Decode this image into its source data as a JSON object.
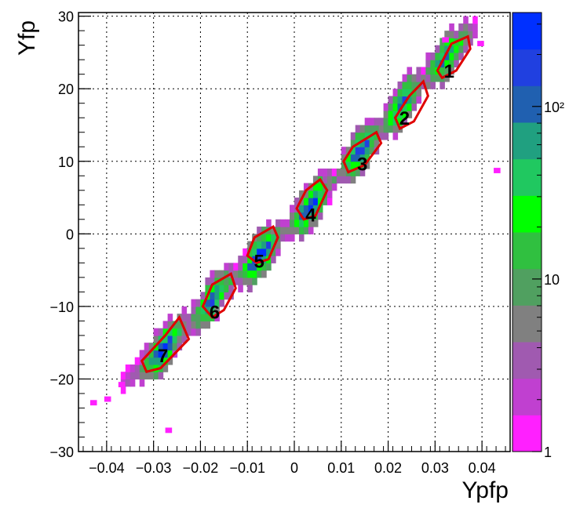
{
  "chart_data": {
    "type": "heatmap",
    "xlabel": "Ypfp",
    "ylabel": "Yfp",
    "xlim": [
      -0.046,
      0.046
    ],
    "ylim": [
      -30,
      30.5
    ],
    "grid": true,
    "x_ticks": [
      {
        "value": -0.04,
        "label": "−0.04"
      },
      {
        "value": -0.03,
        "label": "−0.03"
      },
      {
        "value": -0.02,
        "label": "−0.02"
      },
      {
        "value": -0.01,
        "label": "−0.01"
      },
      {
        "value": 0,
        "label": "0"
      },
      {
        "value": 0.01,
        "label": "0.01"
      },
      {
        "value": 0.02,
        "label": "0.02"
      },
      {
        "value": 0.03,
        "label": "0.03"
      },
      {
        "value": 0.04,
        "label": "0.04"
      }
    ],
    "y_ticks": [
      {
        "value": -30,
        "label": "−30"
      },
      {
        "value": -20,
        "label": "−20"
      },
      {
        "value": -10,
        "label": "−10"
      },
      {
        "value": 0,
        "label": "0"
      },
      {
        "value": 10,
        "label": "10"
      },
      {
        "value": 20,
        "label": "20"
      },
      {
        "value": 30,
        "label": "30"
      }
    ],
    "colorbar": {
      "scale": "log",
      "range": [
        1,
        350
      ],
      "ticks": [
        {
          "value": 1,
          "label": "1"
        },
        {
          "value": 10,
          "label": "10"
        },
        {
          "value": 100,
          "label": "10²"
        }
      ],
      "palette": [
        "#ff20ff",
        "#c040d0",
        "#a05ab0",
        "#808080",
        "#50a060",
        "#30c040",
        "#00ff00",
        "#20c860",
        "#20a080",
        "#2060b0",
        "#2040e0",
        "#0030ff"
      ]
    },
    "ridge": [
      [
        -0.043,
        -23.5
      ],
      [
        -0.036,
        -20.5
      ],
      [
        -0.03,
        -17.5
      ],
      [
        -0.025,
        -14
      ],
      [
        -0.02,
        -11
      ],
      [
        -0.016,
        -8
      ],
      [
        -0.012,
        -6
      ],
      [
        -0.008,
        -3.5
      ],
      [
        -0.004,
        -1
      ],
      [
        0.0,
        1.5
      ],
      [
        0.004,
        4
      ],
      [
        0.008,
        7
      ],
      [
        0.012,
        10
      ],
      [
        0.016,
        12.5
      ],
      [
        0.02,
        15.5
      ],
      [
        0.024,
        18.5
      ],
      [
        0.028,
        21.5
      ],
      [
        0.032,
        24
      ],
      [
        0.036,
        26.5
      ],
      [
        0.0385,
        28.5
      ]
    ],
    "outliers": [
      {
        "x": 0.0425,
        "y": 8.5,
        "count": 1
      },
      {
        "x": -0.0435,
        "y": -23.5,
        "count": 1
      },
      {
        "x": -0.0405,
        "y": -23.0,
        "count": 1
      },
      {
        "x": -0.0375,
        "y": -21.0,
        "count": 1
      },
      {
        "x": -0.0275,
        "y": -27.3,
        "count": 1
      },
      {
        "x": 0.0315,
        "y": 26.5,
        "count": 1
      },
      {
        "x": 0.039,
        "y": 26.0,
        "count": 1
      }
    ],
    "cuts": [
      {
        "label": "1",
        "label_pos": [
          0.033,
          22.5
        ],
        "polygon": [
          [
            0.0305,
            22.5
          ],
          [
            0.0335,
            26.2
          ],
          [
            0.037,
            27.2
          ],
          [
            0.0375,
            25.5
          ],
          [
            0.0345,
            22.5
          ],
          [
            0.0315,
            21.5
          ]
        ]
      },
      {
        "label": "2",
        "label_pos": [
          0.0235,
          16.0
        ],
        "polygon": [
          [
            0.0215,
            16.0
          ],
          [
            0.0245,
            19.0
          ],
          [
            0.0275,
            21.0
          ],
          [
            0.0285,
            19.0
          ],
          [
            0.0255,
            15.5
          ],
          [
            0.0225,
            14.5
          ]
        ]
      },
      {
        "label": "3",
        "label_pos": [
          0.0145,
          9.7
        ],
        "polygon": [
          [
            0.0105,
            10.0
          ],
          [
            0.0125,
            12.0
          ],
          [
            0.0175,
            14.0
          ],
          [
            0.0185,
            12.5
          ],
          [
            0.015,
            9.5
          ],
          [
            0.0115,
            8.5
          ]
        ]
      },
      {
        "label": "4",
        "label_pos": [
          0.0035,
          2.7
        ],
        "polygon": [
          [
            0.0005,
            3.5
          ],
          [
            0.0025,
            6.0
          ],
          [
            0.0055,
            7.5
          ],
          [
            0.007,
            6.0
          ],
          [
            0.0045,
            2.5
          ],
          [
            0.002,
            2.0
          ]
        ]
      },
      {
        "label": "5",
        "label_pos": [
          -0.0075,
          -3.7
        ],
        "polygon": [
          [
            -0.01,
            -3.0
          ],
          [
            -0.0085,
            -0.5
          ],
          [
            -0.0045,
            1.0
          ],
          [
            -0.0035,
            -0.5
          ],
          [
            -0.0055,
            -3.5
          ],
          [
            -0.008,
            -4.0
          ]
        ]
      },
      {
        "label": "6",
        "label_pos": [
          -0.017,
          -10.7
        ],
        "polygon": [
          [
            -0.0195,
            -10.0
          ],
          [
            -0.0175,
            -7.0
          ],
          [
            -0.0135,
            -5.5
          ],
          [
            -0.0125,
            -7.5
          ],
          [
            -0.015,
            -10.5
          ],
          [
            -0.0175,
            -11.5
          ]
        ]
      },
      {
        "label": "7",
        "label_pos": [
          -0.028,
          -16.7
        ],
        "polygon": [
          [
            -0.0325,
            -17.5
          ],
          [
            -0.0275,
            -14.0
          ],
          [
            -0.0245,
            -11.5
          ],
          [
            -0.0225,
            -14.5
          ],
          [
            -0.0285,
            -18.5
          ],
          [
            -0.0315,
            -19.0
          ]
        ]
      }
    ]
  }
}
